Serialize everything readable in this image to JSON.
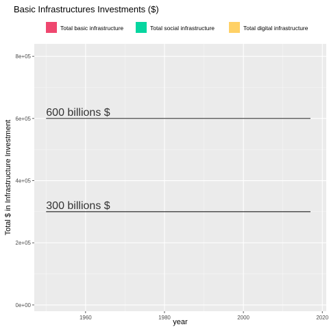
{
  "chart_data": {
    "type": "line",
    "title": "Basic Infrastructures Investments ($)",
    "xlabel": "year",
    "ylabel": "Total $ in Infrastructure Investment",
    "xlim": [
      1947,
      2021
    ],
    "ylim": [
      -20000,
      840000
    ],
    "x_ticks": [
      1960,
      1980,
      2000,
      2020
    ],
    "y_ticks": [
      0,
      200000,
      400000,
      600000,
      800000
    ],
    "y_tick_labels": [
      "0e+00",
      "2e+05",
      "4e+05",
      "6e+05",
      "8e+05"
    ],
    "grid": true,
    "legend_position": "top",
    "series": [
      {
        "name": "Total basic infrastructure",
        "color": "#EF476F",
        "values": []
      },
      {
        "name": "Total social infrastructure",
        "color": "#06D6A0",
        "values": []
      },
      {
        "name": "Total digital infrastructure",
        "color": "#FFD166",
        "values": []
      }
    ],
    "reference_lines": [
      {
        "y": 600000,
        "x_start": 1950,
        "x_end": 2017,
        "label": "600 billions $"
      },
      {
        "y": 300000,
        "x_start": 1950,
        "x_end": 2017,
        "label": "300 billions $"
      }
    ]
  }
}
